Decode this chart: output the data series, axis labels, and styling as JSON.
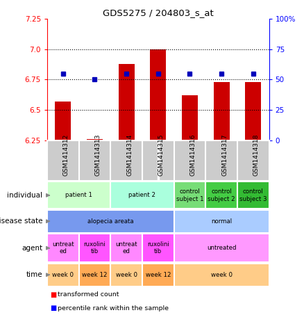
{
  "title": "GDS5275 / 204803_s_at",
  "samples": [
    "GSM1414312",
    "GSM1414313",
    "GSM1414314",
    "GSM1414315",
    "GSM1414316",
    "GSM1414317",
    "GSM1414318"
  ],
  "bar_values": [
    6.57,
    6.26,
    6.88,
    7.0,
    6.62,
    6.73,
    6.73
  ],
  "percentiles": [
    55,
    50,
    55,
    55,
    55,
    55,
    55
  ],
  "ylim_left": [
    6.25,
    7.25
  ],
  "ylim_right": [
    0,
    100
  ],
  "yticks_left": [
    6.25,
    6.5,
    6.75,
    7.0,
    7.25
  ],
  "yticks_right": [
    0,
    25,
    50,
    75,
    100
  ],
  "ytick_labels_right": [
    "0",
    "25",
    "50",
    "75",
    "100%"
  ],
  "bar_color": "#cc0000",
  "dot_color": "#0000bb",
  "bar_bottom": 6.25,
  "grid_yticks": [
    6.5,
    6.75,
    7.0
  ],
  "individual_groups": [
    {
      "label": "patient 1",
      "cols": [
        0,
        1
      ],
      "color": "#ccffcc"
    },
    {
      "label": "patient 2",
      "cols": [
        2,
        3
      ],
      "color": "#aaffdd"
    },
    {
      "label": "control\nsubject 1",
      "cols": [
        4
      ],
      "color": "#77dd77"
    },
    {
      "label": "control\nsubject 2",
      "cols": [
        5
      ],
      "color": "#44cc44"
    },
    {
      "label": "control\nsubject 3",
      "cols": [
        6
      ],
      "color": "#33bb33"
    }
  ],
  "disease_groups": [
    {
      "label": "alopecia areata",
      "cols": [
        0,
        1,
        2,
        3
      ],
      "color": "#7799ee"
    },
    {
      "label": "normal",
      "cols": [
        4,
        5,
        6
      ],
      "color": "#aaccff"
    }
  ],
  "agent_groups": [
    {
      "label": "untreat\ned",
      "cols": [
        0
      ],
      "color": "#ff88ff"
    },
    {
      "label": "ruxolini\ntib",
      "cols": [
        1
      ],
      "color": "#ff55ff"
    },
    {
      "label": "untreat\ned",
      "cols": [
        2
      ],
      "color": "#ff88ff"
    },
    {
      "label": "ruxolini\ntib",
      "cols": [
        3
      ],
      "color": "#ff55ff"
    },
    {
      "label": "untreated",
      "cols": [
        4,
        5,
        6
      ],
      "color": "#ff99ff"
    }
  ],
  "time_groups": [
    {
      "label": "week 0",
      "cols": [
        0
      ],
      "color": "#ffcc88"
    },
    {
      "label": "week 12",
      "cols": [
        1
      ],
      "color": "#ffaa55"
    },
    {
      "label": "week 0",
      "cols": [
        2
      ],
      "color": "#ffcc88"
    },
    {
      "label": "week 12",
      "cols": [
        3
      ],
      "color": "#ffaa55"
    },
    {
      "label": "week 0",
      "cols": [
        4,
        5,
        6
      ],
      "color": "#ffcc88"
    }
  ],
  "row_labels": [
    "individual",
    "disease state",
    "agent",
    "time"
  ],
  "sample_bg_color": "#cccccc",
  "separator_col": 3.5
}
